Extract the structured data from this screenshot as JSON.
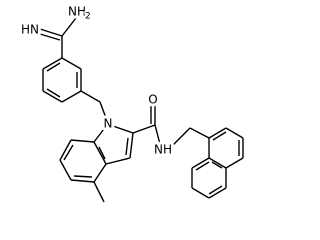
{
  "atoms": [
    {
      "label": "NH",
      "subscript": "2"
    },
    {
      "label": "HN"
    },
    {
      "label": "N"
    },
    {
      "label": "O"
    },
    {
      "label": "NH"
    }
  ]
}
